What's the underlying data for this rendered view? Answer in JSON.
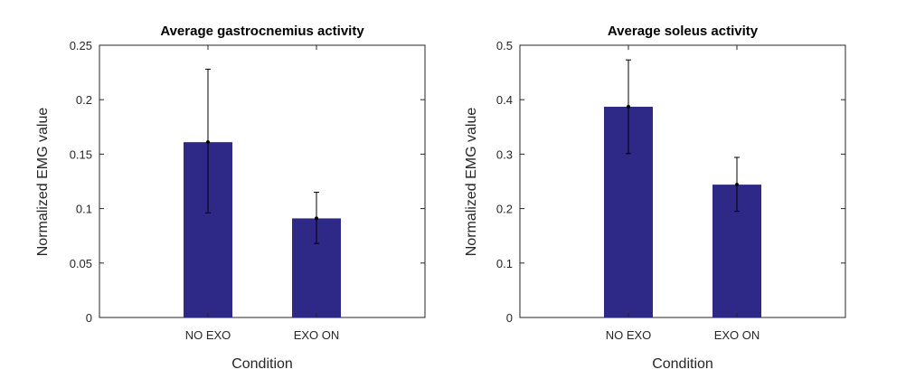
{
  "chart_data": [
    {
      "type": "bar",
      "title": "Average gastrocnemius activity",
      "xlabel": "Condition",
      "ylabel": "Normalized EMG value",
      "categories": [
        "NO EXO",
        "EXO ON"
      ],
      "values": [
        0.161,
        0.091
      ],
      "error_low": [
        0.096,
        0.068
      ],
      "error_high": [
        0.228,
        0.115
      ],
      "ylim": [
        0,
        0.25
      ],
      "yticks": [
        0,
        0.05,
        0.1,
        0.15,
        0.2,
        0.25
      ],
      "ytick_labels": [
        "0",
        "0.05",
        "0.1",
        "0.15",
        "0.2",
        "0.25"
      ],
      "bar_color": "#2e2886",
      "grid": false
    },
    {
      "type": "bar",
      "title": "Average soleus activity",
      "xlabel": "Condition",
      "ylabel": "Normalized EMG value",
      "categories": [
        "NO EXO",
        "EXO ON"
      ],
      "values": [
        0.387,
        0.244
      ],
      "error_low": [
        0.301,
        0.195
      ],
      "error_high": [
        0.473,
        0.294
      ],
      "ylim": [
        0,
        0.5
      ],
      "yticks": [
        0,
        0.1,
        0.2,
        0.3,
        0.4,
        0.5
      ],
      "ytick_labels": [
        "0",
        "0.1",
        "0.2",
        "0.3",
        "0.4",
        "0.5"
      ],
      "bar_color": "#2e2886",
      "grid": false
    }
  ]
}
